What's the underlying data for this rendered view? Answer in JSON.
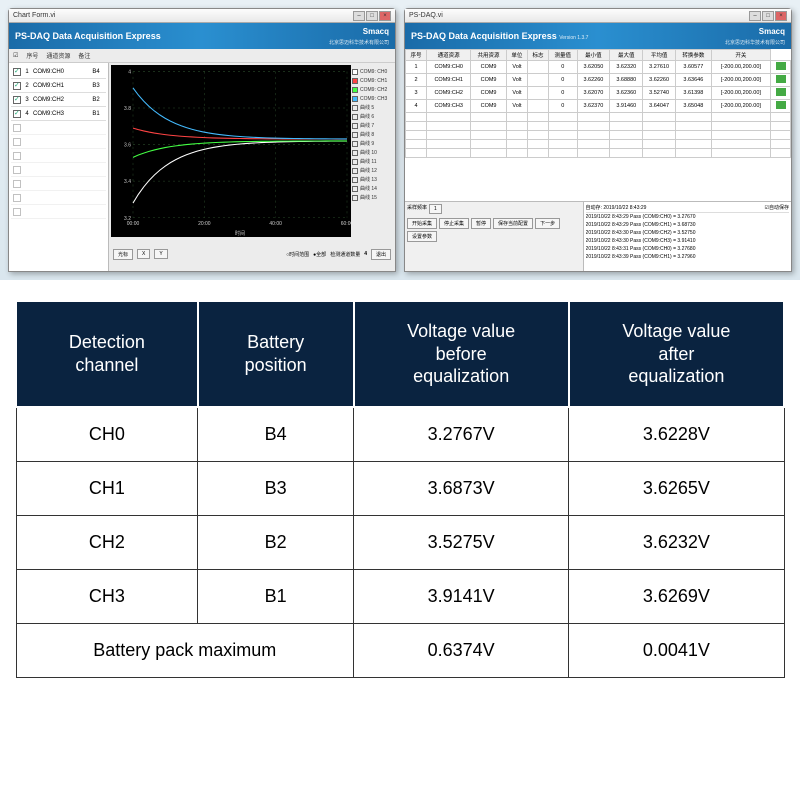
{
  "left_window": {
    "titlebar": "Chart Form.vi",
    "banner_title": "PS-DAQ  Data Acquisition Express",
    "banner_brand": "Smacq",
    "banner_sub": "北京思迈科华技术有限公司",
    "toolbar": {
      "col1": "序号",
      "col2": "通道资源",
      "col3": "备注"
    },
    "channels": [
      {
        "n": "1",
        "name": "COM9:CH0",
        "pos": "B4",
        "on": true
      },
      {
        "n": "2",
        "name": "COM9:CH1",
        "pos": "B3",
        "on": true
      },
      {
        "n": "3",
        "name": "COM9:CH2",
        "pos": "B2",
        "on": true
      },
      {
        "n": "4",
        "name": "COM9:CH3",
        "pos": "B1",
        "on": true
      }
    ],
    "empty_rows": 7,
    "chart": {
      "bg": "#000000",
      "grid_color": "#2a4a2a",
      "axis_color": "#cccccc",
      "ylim": [
        3.2,
        4.0
      ],
      "yticks": [
        "3.2",
        "3.4",
        "3.6",
        "3.8",
        "4"
      ],
      "xlim": [
        0,
        60
      ],
      "xticks": [
        "00:00",
        "20:00",
        "40:00",
        "60:00"
      ],
      "xlabel": "时间",
      "series": [
        {
          "name": "COM9: CH0",
          "color": "#ffffff",
          "start": 3.28,
          "end": 3.62
        },
        {
          "name": "COM9: CH1",
          "color": "#ff4444",
          "start": 3.69,
          "end": 3.63
        },
        {
          "name": "COM9: CH2",
          "color": "#44ff44",
          "start": 3.53,
          "end": 3.62
        },
        {
          "name": "COM9: CH3",
          "color": "#44bbff",
          "start": 3.91,
          "end": 3.63
        }
      ],
      "legend_extra": [
        "曲线 5",
        "曲线 6",
        "曲线 7",
        "曲线 8",
        "曲线 9",
        "曲线 10",
        "曲线 11",
        "曲线 12",
        "曲线 13",
        "曲线 14",
        "曲线 15"
      ]
    },
    "bottom": {
      "cursor_label": "光标",
      "x_label": "X",
      "y_label": "Y",
      "mode_a": "时间范围",
      "mode_b": "全部",
      "count_label": "检测通道数量",
      "count_val": "4",
      "back": "退出"
    }
  },
  "right_window": {
    "titlebar": "PS-DAQ.vi",
    "banner_title": "PS-DAQ  Data Acquisition Express",
    "banner_version": "Version 1.3.7",
    "banner_brand": "Smacq",
    "banner_sub": "北京思迈科华技术有限公司",
    "grid": {
      "headers": [
        "序号",
        "通道资源",
        "共用资源",
        "单位",
        "标志",
        "测量值",
        "最小值",
        "最大值",
        "平均值",
        "转换参数",
        "开关"
      ],
      "rows": [
        [
          "1",
          "COM9:CH0",
          "COM9",
          "Volt",
          "",
          "0",
          "3.62050",
          "3.62320",
          "3.27610",
          "3.60577",
          "[-200.00,200.00]"
        ],
        [
          "2",
          "COM9:CH1",
          "COM9",
          "Volt",
          "",
          "0",
          "3.62260",
          "3.68880",
          "3.62260",
          "3.63646",
          "[-200.00,200.00]"
        ],
        [
          "3",
          "COM9:CH2",
          "COM9",
          "Volt",
          "",
          "0",
          "3.62070",
          "3.62360",
          "3.52740",
          "3.61398",
          "[-200.00,200.00]"
        ],
        [
          "4",
          "COM9:CH3",
          "COM9",
          "Volt",
          "",
          "0",
          "3.62370",
          "3.91460",
          "3.64047",
          "3.65048",
          "[-200.00,200.00]"
        ]
      ]
    },
    "controls": {
      "rate_label": "采样频率",
      "rate_val": "1",
      "start": "开始采集",
      "stop": "停止采集",
      "pause": "暂停",
      "save_cfg": "保存当前配置",
      "next": "下一步",
      "settings": "设置参数"
    },
    "log": {
      "timestamp_label": "自动存",
      "timestamp": "2019/10/22 8:43:29",
      "auto_save": "自动保存",
      "lines": [
        "2019/10/22 8:43:29 Pass (COM9:CH0) = 3.27670",
        "2019/10/22 8:43:29 Pass (COM9:CH1) = 3.68730",
        "2019/10/22 8:43:30 Pass (COM9:CH2) = 3.52750",
        "2019/10/22 8:43:30 Pass (COM9:CH3) = 3.91410",
        "2019/10/22 8:43:31 Pass (COM9:CH0) = 3.27680",
        "2019/10/22 8:43:39 Pass (COM9:CH1) = 3.27960"
      ]
    }
  },
  "big_table": {
    "header_bg": "#0a2340",
    "header_fg": "#ffffff",
    "cell_border": "#333333",
    "fontsize_header": 18,
    "fontsize_cell": 18,
    "columns": [
      "Detection channel",
      "Battery position",
      "Voltage value before equalization",
      "Voltage value after equalization"
    ],
    "rows": [
      [
        "CH0",
        "B4",
        "3.2767V",
        "3.6228V"
      ],
      [
        "CH1",
        "B3",
        "3.6873V",
        "3.6265V"
      ],
      [
        "CH2",
        "B2",
        "3.5275V",
        "3.6232V"
      ],
      [
        "CH3",
        "B1",
        "3.9141V",
        "3.6269V"
      ]
    ],
    "summary": {
      "label": "Battery pack maximum",
      "before": "0.6374V",
      "after": "0.0041V"
    }
  }
}
